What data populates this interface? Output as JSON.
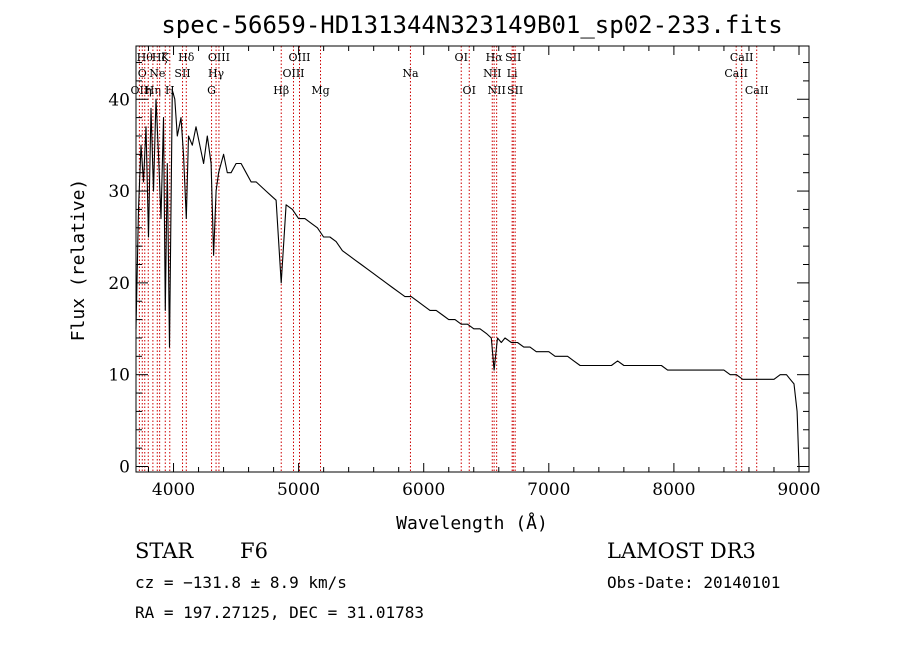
{
  "chart_data": {
    "type": "line",
    "title": "spec-56659-HD131344N323149B01_sp02-233.fits",
    "xlabel": "Wavelength (Å)",
    "ylabel": "Flux (relative)",
    "xlim": [
      3700,
      9080
    ],
    "ylim": [
      -0.6,
      45.8
    ],
    "xticks": [
      4000,
      5000,
      6000,
      7000,
      8000,
      9000
    ],
    "yticks": [
      0,
      10,
      20,
      30,
      40
    ],
    "grid": false,
    "series": [
      {
        "name": "flux",
        "color": "#000000",
        "x": [
          3700,
          3720,
          3740,
          3760,
          3780,
          3800,
          3820,
          3840,
          3860,
          3880,
          3900,
          3920,
          3934,
          3950,
          3968,
          3990,
          4010,
          4030,
          4060,
          4080,
          4102,
          4120,
          4150,
          4180,
          4210,
          4240,
          4270,
          4300,
          4320,
          4340,
          4360,
          4380,
          4400,
          4430,
          4460,
          4500,
          4540,
          4580,
          4620,
          4660,
          4700,
          4740,
          4780,
          4820,
          4861,
          4900,
          4950,
          5000,
          5050,
          5100,
          5150,
          5200,
          5250,
          5300,
          5350,
          5400,
          5450,
          5500,
          5550,
          5600,
          5650,
          5700,
          5750,
          5800,
          5850,
          5900,
          5950,
          6000,
          6050,
          6100,
          6150,
          6200,
          6250,
          6300,
          6350,
          6400,
          6450,
          6500,
          6540,
          6563,
          6590,
          6620,
          6650,
          6700,
          6750,
          6800,
          6850,
          6900,
          6950,
          7000,
          7050,
          7100,
          7150,
          7200,
          7250,
          7300,
          7350,
          7400,
          7450,
          7500,
          7550,
          7600,
          7650,
          7700,
          7750,
          7800,
          7850,
          7900,
          7950,
          8000,
          8050,
          8100,
          8150,
          8200,
          8250,
          8300,
          8350,
          8400,
          8450,
          8500,
          8550,
          8600,
          8650,
          8700,
          8750,
          8800,
          8850,
          8900,
          8930,
          8960,
          8985,
          9000
        ],
        "y": [
          15,
          28,
          35,
          31,
          37,
          25,
          39,
          30,
          40,
          34,
          27,
          38,
          17,
          33,
          13,
          41,
          40,
          36,
          38,
          34,
          27,
          36,
          35,
          37,
          35,
          33,
          36,
          33,
          23,
          30,
          32,
          33,
          34,
          32,
          32,
          33,
          33,
          32,
          31,
          31,
          30.5,
          30,
          29.5,
          29,
          20,
          28.5,
          28,
          27,
          27,
          26.5,
          26,
          25,
          25,
          24.5,
          23.5,
          23,
          22.5,
          22,
          21.5,
          21,
          20.5,
          20,
          19.5,
          19,
          18.5,
          18.5,
          18,
          17.5,
          17,
          17,
          16.5,
          16,
          16,
          15.5,
          15.5,
          15,
          15,
          14.5,
          14,
          10.5,
          14,
          13.5,
          14,
          13.5,
          13.5,
          13,
          13,
          12.5,
          12.5,
          12.5,
          12,
          12,
          12,
          11.5,
          11,
          11,
          11,
          11,
          11,
          11,
          11.5,
          11,
          11,
          11,
          11,
          11,
          11,
          11,
          10.5,
          10.5,
          10.5,
          10.5,
          10.5,
          10.5,
          10.5,
          10.5,
          10.5,
          10.5,
          10,
          10,
          9.5,
          9.5,
          9.5,
          9.5,
          9.5,
          9.5,
          10,
          10,
          9.5,
          9,
          6,
          0
        ]
      }
    ],
    "lines": [
      {
        "wavelength": 3727,
        "label": "OII",
        "row": 2
      },
      {
        "wavelength": 3750,
        "label": "O",
        "row": 1
      },
      {
        "wavelength": 3770,
        "label": "Hθ",
        "row": 0
      },
      {
        "wavelength": 3798,
        "label": "η",
        "row": 2
      },
      {
        "wavelength": 3835,
        "label": "Hη",
        "row": 2
      },
      {
        "wavelength": 3870,
        "label": "Ne",
        "row": 1
      },
      {
        "wavelength": 3889,
        "label": "Hζ",
        "row": 0
      },
      {
        "wavelength": 3934,
        "label": "K",
        "row": 0
      },
      {
        "wavelength": 3970,
        "label": "H",
        "row": 2
      },
      {
        "wavelength": 4072,
        "label": "SII",
        "row": 1
      },
      {
        "wavelength": 4102,
        "label": "Hδ",
        "row": 0
      },
      {
        "wavelength": 4304,
        "label": "G",
        "row": 2
      },
      {
        "wavelength": 4340,
        "label": "Hγ",
        "row": 1
      },
      {
        "wavelength": 4363,
        "label": "OIII",
        "row": 0
      },
      {
        "wavelength": 4861,
        "label": "Hβ",
        "row": 2
      },
      {
        "wavelength": 4959,
        "label": "OIII",
        "row": 1
      },
      {
        "wavelength": 5007,
        "label": "OIII",
        "row": 0
      },
      {
        "wavelength": 5175,
        "label": "Mg",
        "row": 2
      },
      {
        "wavelength": 5894,
        "label": "Na",
        "row": 1
      },
      {
        "wavelength": 6300,
        "label": "OI",
        "row": 0
      },
      {
        "wavelength": 6364,
        "label": "OI",
        "row": 2
      },
      {
        "wavelength": 6548,
        "label": "NII",
        "row": 1
      },
      {
        "wavelength": 6563,
        "label": "Hα",
        "row": 0
      },
      {
        "wavelength": 6583,
        "label": "NII",
        "row": 2
      },
      {
        "wavelength": 6707,
        "label": "Li",
        "row": 1
      },
      {
        "wavelength": 6716,
        "label": "SII",
        "row": 0
      },
      {
        "wavelength": 6731,
        "label": "SII",
        "row": 2
      },
      {
        "wavelength": 8498,
        "label": "CaII",
        "row": 1
      },
      {
        "wavelength": 8542,
        "label": "CaII",
        "row": 0
      },
      {
        "wavelength": 8662,
        "label": "CaII",
        "row": 2
      }
    ]
  },
  "info": {
    "object_class": "STAR",
    "subclass": "F6",
    "survey": "LAMOST DR3",
    "redshift": "cz = −131.8 ± 8.9 km/s",
    "obs_date": "Obs-Date: 20140101",
    "coords": "RA = 197.27125, DEC =  31.01783"
  },
  "colors": {
    "spectrum": "#000000",
    "line_marker": "#cc0000",
    "axes": "#000000",
    "background": "#ffffff"
  }
}
